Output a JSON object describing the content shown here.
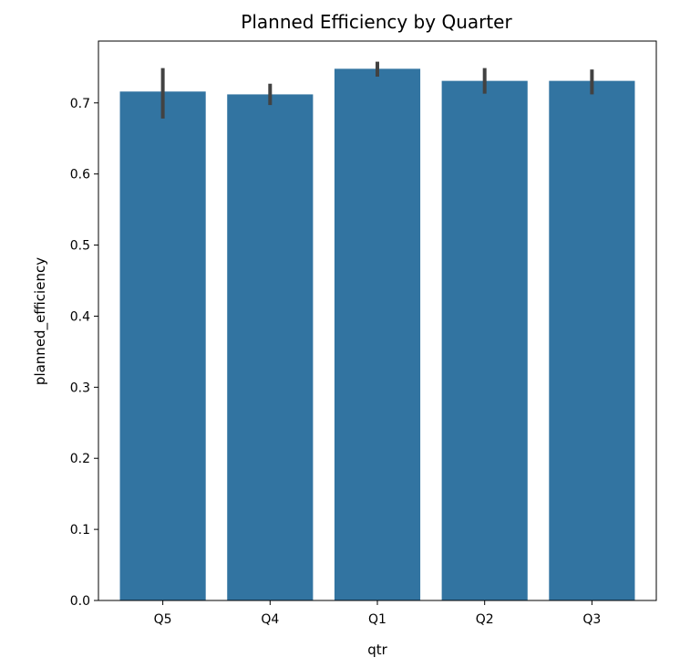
{
  "chart_data": {
    "type": "bar",
    "title": "Planned Efficiency by Quarter",
    "xlabel": "qtr",
    "ylabel": "planned_efficiency",
    "categories": [
      "Q5",
      "Q4",
      "Q1",
      "Q2",
      "Q3"
    ],
    "values": [
      0.716,
      0.712,
      0.748,
      0.731,
      0.731
    ],
    "error_bars": [
      {
        "low": 0.678,
        "high": 0.749
      },
      {
        "low": 0.697,
        "high": 0.727
      },
      {
        "low": 0.737,
        "high": 0.758
      },
      {
        "low": 0.713,
        "high": 0.749
      },
      {
        "low": 0.712,
        "high": 0.747
      }
    ],
    "ylim": [
      0.0,
      0.787
    ],
    "yticks": [
      0.0,
      0.1,
      0.2,
      0.3,
      0.4,
      0.5,
      0.6,
      0.7
    ],
    "ytick_labels": [
      "0.0",
      "0.1",
      "0.2",
      "0.3",
      "0.4",
      "0.5",
      "0.6",
      "0.7"
    ],
    "grid": false,
    "bar_color": "#3274a1",
    "errorbar_color": "#424242"
  }
}
